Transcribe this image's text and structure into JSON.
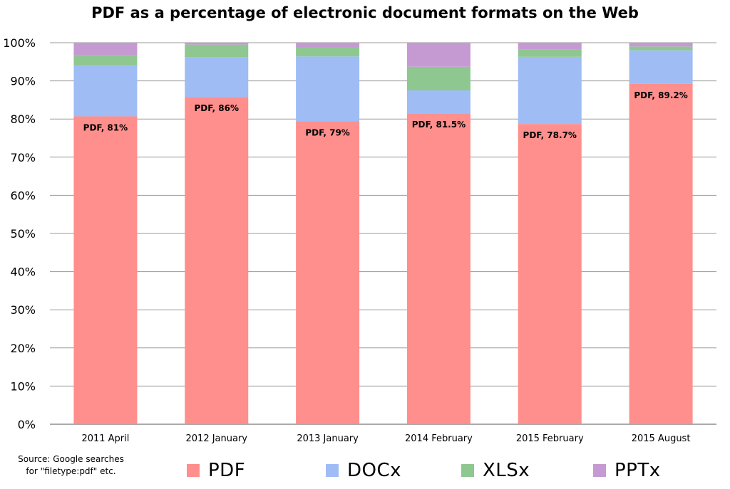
{
  "chart_data": {
    "type": "bar",
    "stacked": true,
    "title": "PDF as a percentage of electronic document formats on the Web",
    "categories": [
      "2011 April",
      "2012 January",
      "2013 January",
      "2014 February",
      "2015 February",
      "2015 August"
    ],
    "series": [
      {
        "name": "PDF",
        "color": "#ff8f8c",
        "values": [
          80.7,
          85.8,
          79.4,
          81.5,
          78.7,
          89.2
        ]
      },
      {
        "name": "DOCx",
        "color": "#9fbcf5",
        "values": [
          13.3,
          10.4,
          17.0,
          6.0,
          17.6,
          8.8
        ]
      },
      {
        "name": "XLSx",
        "color": "#8fc791",
        "values": [
          2.7,
          3.3,
          2.3,
          6.2,
          2.0,
          1.0
        ]
      },
      {
        "name": "PPTx",
        "color": "#c59ad2",
        "values": [
          3.3,
          0.5,
          1.3,
          6.3,
          1.7,
          1.0
        ]
      }
    ],
    "data_labels": [
      "PDF, 81%",
      "PDF, 86%",
      "PDF, 79%",
      "PDF, 81.5%",
      "PDF, 78.7%",
      "PDF, 89.2%"
    ],
    "y_ticks": [
      "0%",
      "10%",
      "20%",
      "30%",
      "40%",
      "50%",
      "60%",
      "70%",
      "80%",
      "90%",
      "100%"
    ],
    "ylim": [
      0,
      100
    ],
    "grid": true,
    "legend_position": "bottom"
  },
  "source_note": {
    "line1": "Source: Google searches",
    "line2": "for \"filetype:pdf\" etc."
  }
}
